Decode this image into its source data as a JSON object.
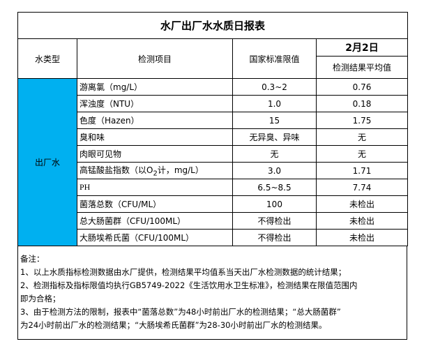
{
  "title": "水厂出厂水水质日报表",
  "header": {
    "water_type": "水类型",
    "item": "检测项目",
    "limit": "国家标准限值",
    "date": "2月2日",
    "result": "检测结果平均值"
  },
  "water_type_value": "出厂水",
  "highlight_color": "#00B0F0",
  "rows": [
    {
      "item": "游离氯（mg/L）",
      "limit": "0.3~2",
      "result": "0.76"
    },
    {
      "item": "浑浊度（NTU）",
      "limit": "1.0",
      "result": "0.18"
    },
    {
      "item": "色度（Hazen）",
      "limit": "15",
      "result": "1.75"
    },
    {
      "item": "臭和味",
      "limit": "无异臭、异味",
      "result": "无"
    },
    {
      "item": "肉眼可见物",
      "limit": "无",
      "result": "无"
    },
    {
      "item_pre": "高锰酸盐指数（以O",
      "item_sub": "2",
      "item_post": "计，mg/L）",
      "limit": "3.0",
      "result": "1.71"
    },
    {
      "item": "PH",
      "limit": "6.5~8.5",
      "result": "7.74"
    },
    {
      "item": "菌落总数（CFU/ML）",
      "limit": "100",
      "result": "未检出"
    },
    {
      "item": "总大肠菌群（CFU/100ML）",
      "limit": "不得检出",
      "result": "未检出"
    },
    {
      "item": "大肠埃希氏菌（CFU/100ML）",
      "limit": "不得检出",
      "result": "未检出"
    }
  ],
  "notes": [
    "备注：",
    "1、以上水质指标检测数据由水厂提供，检测结果平均值系当天出厂水检测数据的统计结果；",
    "2、检测指标及指标限值均执行GB5749-2022《生活饮用水卫生标准》，检测结果在限值范围内",
    "即为合格；",
    "3、由于检测方法的限制，报表中“菌落总数”为48小时前出厂水的检测结果；“总大肠菌群”",
    "为24小时前出厂水的检测结果；“大肠埃希氏菌群”为28-30小时前出厂水的检测结果。"
  ]
}
